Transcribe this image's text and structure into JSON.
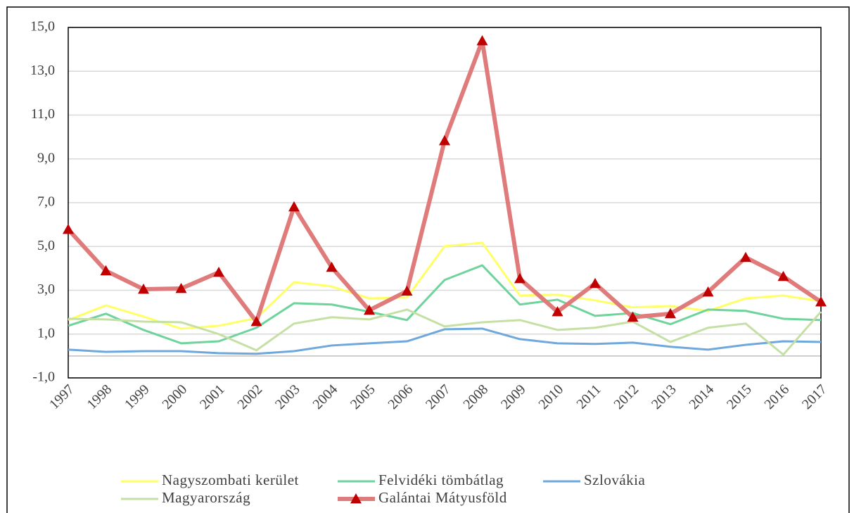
{
  "chart_data": {
    "type": "line",
    "categories": [
      "1997",
      "1998",
      "1999",
      "2000",
      "2001",
      "2002",
      "2003",
      "2004",
      "2005",
      "2006",
      "2007",
      "2008",
      "2009",
      "2010",
      "2011",
      "2012",
      "2013",
      "2014",
      "2015",
      "2016",
      "2017"
    ],
    "series": [
      {
        "name": "Nagyszombati kerület",
        "color": "#ffff66",
        "values": [
          1.64,
          2.31,
          1.8,
          1.25,
          1.38,
          1.73,
          3.37,
          3.18,
          2.63,
          2.67,
          5.01,
          5.17,
          2.76,
          2.8,
          2.54,
          2.22,
          2.28,
          2.06,
          2.63,
          2.76,
          2.5
        ]
      },
      {
        "name": "Felvidéki tömbátlag",
        "color": "#6fd39c",
        "values": [
          1.38,
          1.93,
          1.19,
          0.58,
          0.67,
          1.29,
          2.41,
          2.35,
          2.02,
          1.64,
          3.47,
          4.14,
          2.35,
          2.57,
          1.83,
          1.96,
          1.45,
          2.12,
          2.06,
          1.7,
          1.64
        ]
      },
      {
        "name": "Szlovákia",
        "color": "#6fa8dc",
        "values": [
          0.29,
          0.19,
          0.22,
          0.22,
          0.13,
          0.1,
          0.22,
          0.48,
          0.58,
          0.67,
          1.22,
          1.25,
          0.77,
          0.58,
          0.55,
          0.61,
          0.42,
          0.29,
          0.51,
          0.67,
          0.64
        ]
      },
      {
        "name": "Magyarország",
        "color": "#c5e0a5",
        "values": [
          1.7,
          1.67,
          1.57,
          1.54,
          1.0,
          0.26,
          1.48,
          1.77,
          1.67,
          2.12,
          1.35,
          1.54,
          1.64,
          1.19,
          1.29,
          1.57,
          0.64,
          1.29,
          1.48,
          0.06,
          2.02
        ]
      },
      {
        "name": "Galántai Mátyusföld",
        "color": "#e07b7b",
        "marker": "triangle",
        "marker_color": "#c00000",
        "values": [
          5.78,
          3.89,
          3.05,
          3.08,
          3.82,
          1.57,
          6.81,
          4.05,
          2.09,
          2.96,
          9.83,
          14.39,
          3.53,
          2.02,
          3.31,
          1.77,
          1.93,
          2.92,
          4.5,
          3.63,
          2.47
        ]
      }
    ],
    "ylim": [
      -1,
      15
    ],
    "yticks": [
      {
        "value": -1,
        "label": "-1,0"
      },
      {
        "value": 1,
        "label": "1,0"
      },
      {
        "value": 3,
        "label": "3,0"
      },
      {
        "value": 5,
        "label": "5,0"
      },
      {
        "value": 7,
        "label": "7,0"
      },
      {
        "value": 9,
        "label": "9,0"
      },
      {
        "value": 11,
        "label": "11,0"
      },
      {
        "value": 13,
        "label": "13,0"
      },
      {
        "value": 15,
        "label": "15,0"
      }
    ],
    "grid": true
  }
}
